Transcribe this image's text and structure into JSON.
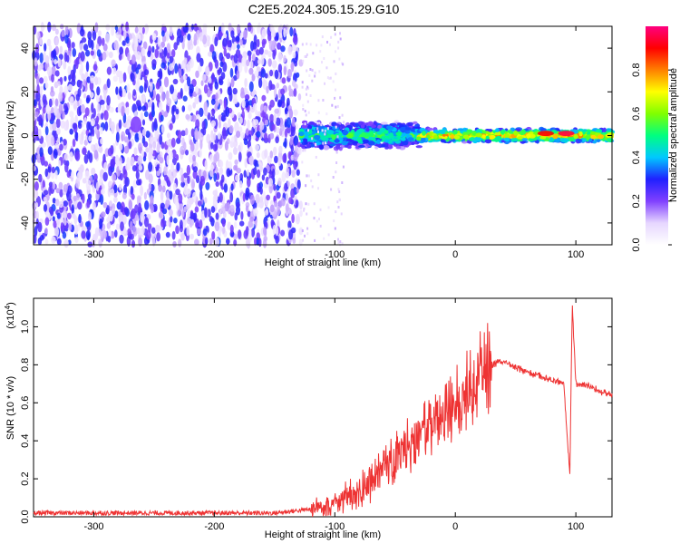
{
  "figure": {
    "title": "C2E5.2024.305.15.29.G10"
  },
  "chart_data": [
    {
      "type": "heatmap",
      "panel": "spectrogram",
      "xlabel": "Height of straight line (km)",
      "ylabel": "Frequency (Hz)",
      "xlim": [
        -350,
        130
      ],
      "ylim": [
        -50,
        50
      ],
      "xticks": [
        -300,
        -200,
        -100,
        0,
        100
      ],
      "xtick_labels": [
        "-300",
        "-200",
        "-100",
        "0",
        "100"
      ],
      "yticks": [
        -40,
        -20,
        0,
        20,
        40
      ],
      "ytick_labels": [
        "-40",
        "-20",
        "0",
        "20",
        "40"
      ],
      "colorbar": {
        "label": "Normalized spectral amplitude",
        "range": [
          0,
          1
        ],
        "ticks": [
          0.0,
          0.2,
          0.4,
          0.6,
          0.8
        ],
        "tick_labels": [
          "0.0",
          "0.2",
          "0.4",
          "0.6",
          "0.8"
        ],
        "colormap": [
          "#ffffff",
          "#e6d6ff",
          "#8040ff",
          "#2020ff",
          "#00c8ff",
          "#00ff80",
          "#80ff00",
          "#ffff00",
          "#ff8000",
          "#ff0000",
          "#ff0080"
        ]
      },
      "regions": [
        {
          "x_from": -350,
          "x_to": -128,
          "frequency_from": -50,
          "frequency_to": 50,
          "amplitude": 0.15
        },
        {
          "x_from": -128,
          "x_to": -30,
          "frequency_from": -5,
          "frequency_to": 5,
          "amplitude": 0.5
        },
        {
          "x_from": -30,
          "x_to": 130,
          "frequency_from": -2,
          "frequency_to": 2,
          "amplitude": 0.75
        }
      ],
      "peaks": [
        {
          "x": -265,
          "frequency": 5,
          "amplitude": 0.2
        },
        {
          "x": 75,
          "frequency": 1,
          "amplitude": 0.9
        },
        {
          "x": 92,
          "frequency": 1,
          "amplitude": 0.95
        }
      ]
    },
    {
      "type": "line",
      "panel": "snr",
      "xlabel": "Height of straight line (km)",
      "ylabel": "SNR (10 * v/v)",
      "y_multiplier_label": "(x10",
      "y_multiplier_exponent": "4",
      "y_multiplier_close": ")",
      "xlim": [
        -350,
        130
      ],
      "ylim": [
        0,
        1.15
      ],
      "xticks": [
        -300,
        -200,
        -100,
        0,
        100
      ],
      "xtick_labels": [
        "-300",
        "-200",
        "-100",
        "0",
        "100"
      ],
      "yticks": [
        0.0,
        0.2,
        0.4,
        0.6,
        0.8,
        1.0
      ],
      "ytick_labels": [
        "0.0",
        "0.2",
        "0.4",
        "0.6",
        "0.8",
        "1.0"
      ],
      "line_color": "#ee3333",
      "series": [
        {
          "x": [
            -350,
            -300,
            -250,
            -200,
            -150,
            -120,
            -100,
            -90,
            -80,
            -70,
            -60,
            -50,
            -40,
            -30,
            -20,
            -10,
            0,
            10,
            20,
            30,
            40,
            50,
            60,
            70,
            80,
            90,
            95,
            97,
            100,
            110,
            120,
            130
          ],
          "y": [
            0.02,
            0.02,
            0.02,
            0.02,
            0.02,
            0.04,
            0.08,
            0.11,
            0.14,
            0.18,
            0.24,
            0.3,
            0.36,
            0.42,
            0.48,
            0.54,
            0.58,
            0.66,
            0.74,
            0.8,
            0.82,
            0.79,
            0.76,
            0.74,
            0.72,
            0.7,
            0.22,
            1.12,
            0.7,
            0.69,
            0.66,
            0.64
          ]
        }
      ]
    }
  ]
}
